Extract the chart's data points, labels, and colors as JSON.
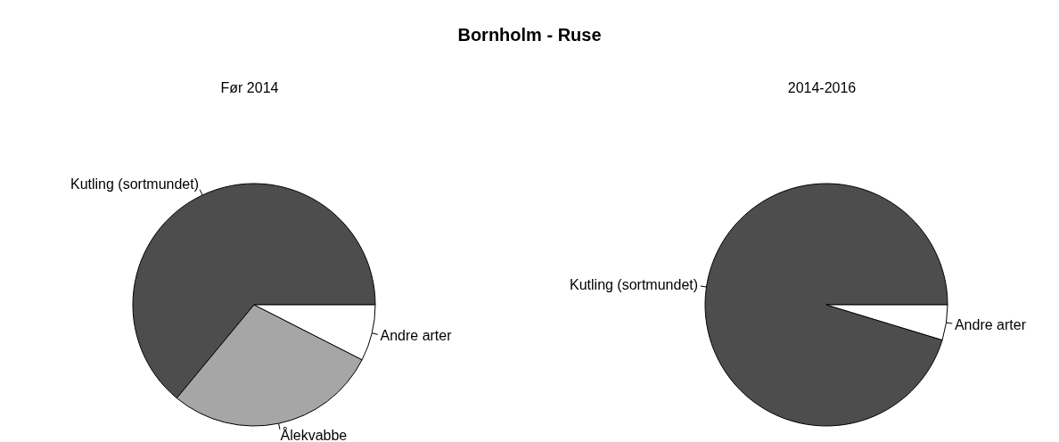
{
  "chart_data": [
    {
      "type": "pie",
      "title": "Før 2014",
      "annotations": [
        "Bornholm - Ruse"
      ],
      "categories": [
        "Kutling (sortmundet)",
        "Ålekvabbe",
        "Andre arter"
      ],
      "values": [
        64,
        28.5,
        7.5
      ],
      "colors": [
        "#4d4d4d",
        "#a6a6a6",
        "#ffffff"
      ],
      "legend": false
    },
    {
      "type": "pie",
      "title": "2014-2016",
      "categories": [
        "Kutling (sortmundet)",
        "Andre arter"
      ],
      "values": [
        95.3,
        4.7
      ],
      "colors": [
        "#4d4d4d",
        "#ffffff"
      ],
      "legend": false
    }
  ]
}
